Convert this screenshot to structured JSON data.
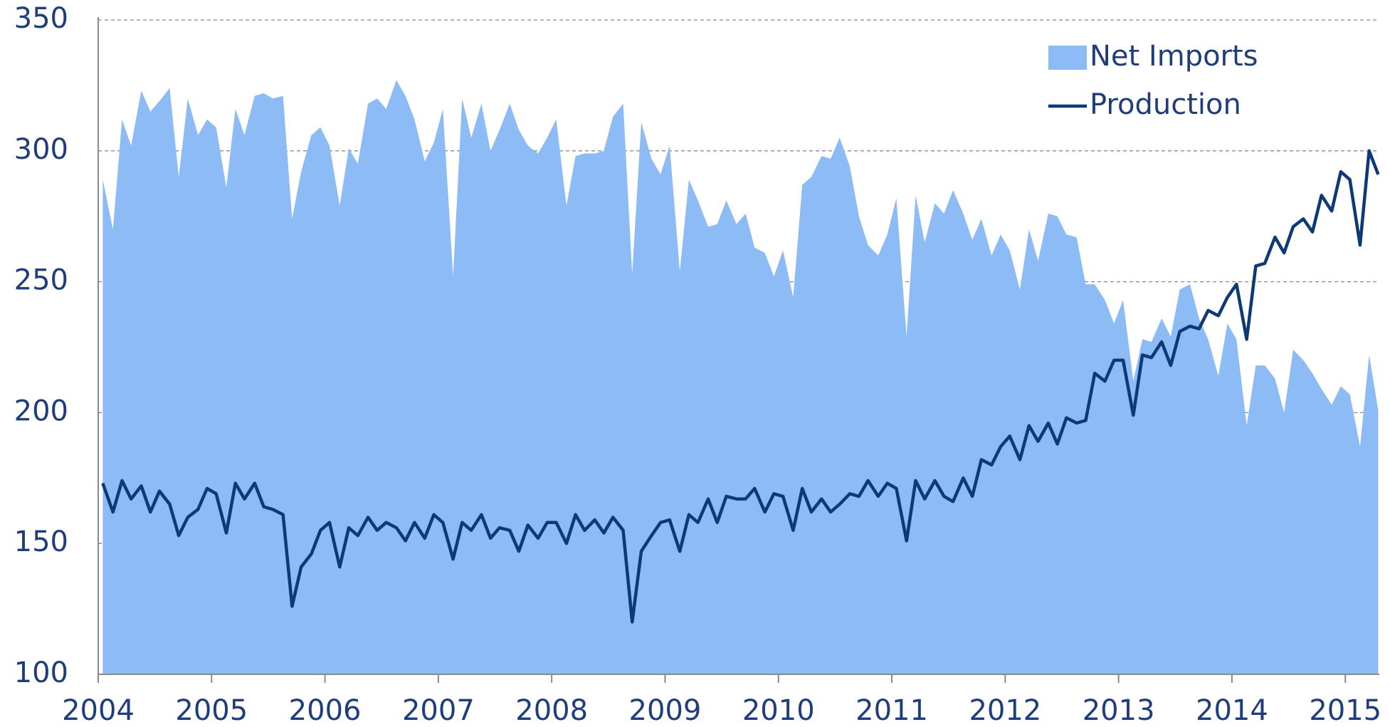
{
  "chart_data": {
    "type": "area-line",
    "x": [
      2004.04,
      2004.13,
      2004.21,
      2004.29,
      2004.38,
      2004.46,
      2004.54,
      2004.63,
      2004.71,
      2004.79,
      2004.88,
      2004.96,
      2005.04,
      2005.13,
      2005.21,
      2005.29,
      2005.38,
      2005.46,
      2005.54,
      2005.63,
      2005.71,
      2005.79,
      2005.88,
      2005.96,
      2006.04,
      2006.13,
      2006.21,
      2006.29,
      2006.38,
      2006.46,
      2006.54,
      2006.63,
      2006.71,
      2006.79,
      2006.88,
      2006.96,
      2007.04,
      2007.13,
      2007.21,
      2007.29,
      2007.38,
      2007.46,
      2007.54,
      2007.63,
      2007.71,
      2007.79,
      2007.88,
      2007.96,
      2008.04,
      2008.13,
      2008.21,
      2008.29,
      2008.38,
      2008.46,
      2008.54,
      2008.63,
      2008.71,
      2008.79,
      2008.88,
      2008.96,
      2009.04,
      2009.13,
      2009.21,
      2009.29,
      2009.38,
      2009.46,
      2009.54,
      2009.63,
      2009.71,
      2009.79,
      2009.88,
      2009.96,
      2010.04,
      2010.13,
      2010.21,
      2010.29,
      2010.38,
      2010.46,
      2010.54,
      2010.63,
      2010.71,
      2010.79,
      2010.88,
      2010.96,
      2011.04,
      2011.13,
      2011.21,
      2011.29,
      2011.38,
      2011.46,
      2011.54,
      2011.63,
      2011.71,
      2011.79,
      2011.88,
      2011.96,
      2012.04,
      2012.13,
      2012.21,
      2012.29,
      2012.38,
      2012.46,
      2012.54,
      2012.63,
      2012.71,
      2012.79,
      2012.88,
      2012.96,
      2013.04,
      2013.13,
      2013.21,
      2013.29,
      2013.38,
      2013.46,
      2013.54,
      2013.63,
      2013.71,
      2013.79,
      2013.88,
      2013.96,
      2014.04,
      2014.13,
      2014.21,
      2014.29,
      2014.38,
      2014.46,
      2014.54,
      2014.63,
      2014.71,
      2014.79,
      2014.88,
      2014.96,
      2015.04,
      2015.13,
      2015.21,
      2015.29
    ],
    "series": [
      {
        "name": "Net Imports",
        "kind": "area",
        "color": "#8dbbf5",
        "values": [
          289,
          270,
          312,
          302,
          323,
          315,
          319,
          324,
          290,
          320,
          306,
          312,
          309,
          286,
          316,
          306,
          321,
          322,
          320,
          321,
          274,
          292,
          306,
          309,
          302,
          279,
          301,
          295,
          318,
          320,
          316,
          327,
          321,
          312,
          296,
          303,
          316,
          252,
          320,
          305,
          318,
          300,
          308,
          318,
          308,
          302,
          299,
          305,
          312,
          279,
          298,
          299,
          299,
          300,
          313,
          318,
          253,
          311,
          297,
          291,
          302,
          254,
          289,
          281,
          271,
          272,
          281,
          272,
          276,
          263,
          261,
          252,
          262,
          244,
          287,
          290,
          298,
          297,
          305,
          294,
          275,
          264,
          260,
          268,
          282,
          229,
          283,
          265,
          280,
          276,
          285,
          276,
          266,
          274,
          260,
          268,
          262,
          247,
          270,
          258,
          276,
          275,
          268,
          267,
          249,
          249,
          243,
          234,
          243,
          212,
          228,
          227,
          236,
          229,
          247,
          249,
          236,
          228,
          214,
          234,
          228,
          195,
          218,
          218,
          213,
          200,
          224,
          220,
          215,
          209,
          203,
          210,
          207,
          187,
          222,
          201
        ]
      },
      {
        "name": "Production",
        "kind": "line",
        "color": "#0d3977",
        "values": [
          173,
          162,
          174,
          167,
          172,
          162,
          170,
          165,
          153,
          160,
          163,
          171,
          169,
          154,
          173,
          167,
          173,
          164,
          163,
          161,
          126,
          141,
          146,
          155,
          158,
          141,
          156,
          153,
          160,
          155,
          158,
          156,
          151,
          158,
          152,
          161,
          158,
          144,
          158,
          155,
          161,
          152,
          156,
          155,
          147,
          157,
          152,
          158,
          158,
          150,
          161,
          155,
          159,
          154,
          160,
          155,
          120,
          147,
          153,
          158,
          159,
          147,
          161,
          158,
          167,
          158,
          168,
          167,
          167,
          171,
          162,
          169,
          168,
          155,
          171,
          162,
          167,
          162,
          165,
          169,
          168,
          174,
          168,
          173,
          171,
          151,
          174,
          167,
          174,
          168,
          166,
          175,
          168,
          182,
          180,
          187,
          191,
          182,
          195,
          189,
          196,
          188,
          198,
          196,
          197,
          215,
          212,
          220,
          220,
          199,
          222,
          221,
          227,
          218,
          231,
          233,
          232,
          239,
          237,
          244,
          249,
          228,
          256,
          257,
          267,
          261,
          271,
          274,
          269,
          283,
          277,
          292,
          289,
          264,
          300,
          291
        ]
      }
    ],
    "xlim": [
      2004,
      2015.3
    ],
    "xticks": [
      2004,
      2005,
      2006,
      2007,
      2008,
      2009,
      2010,
      2011,
      2012,
      2013,
      2014,
      2015
    ],
    "ylim": [
      100,
      350
    ],
    "yticks": [
      100,
      150,
      200,
      250,
      300,
      350
    ],
    "grid": true,
    "legend": "top-right"
  }
}
